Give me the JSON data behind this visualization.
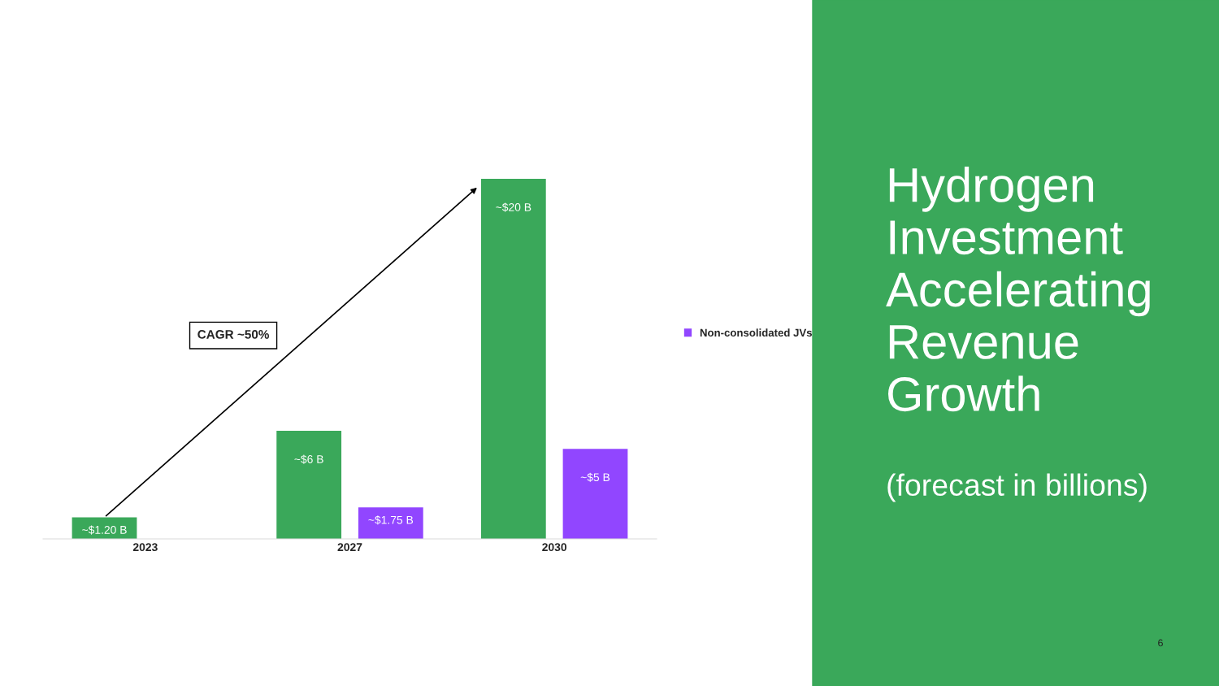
{
  "chart_data": {
    "type": "bar",
    "title": "Hydrogen Investment Accelerating Revenue Growth",
    "subtitle": "(forecast in billions)",
    "categories": [
      "2023",
      "2027",
      "2030"
    ],
    "series": [
      {
        "color": "#3aa85a",
        "values": [
          1.2,
          6,
          20
        ],
        "value_labels": [
          "~$1.20 B",
          "~$6 B",
          "~$20 B"
        ]
      },
      {
        "name": "Non-consolidated JVs",
        "color": "#9146ff",
        "values": [
          null,
          1.75,
          5
        ],
        "value_labels": [
          null,
          "~$1.75 B",
          "~$5 B"
        ]
      }
    ],
    "ylim": [
      0,
      20
    ],
    "tick_labels": "x",
    "grid": false,
    "legend": "right",
    "annotations": [
      "CAGR ~50%",
      "6"
    ]
  }
}
